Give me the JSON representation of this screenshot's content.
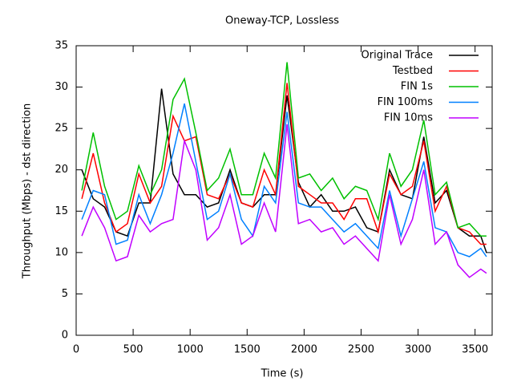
{
  "chart_data": {
    "type": "line",
    "title": "Oneway-TCP, Lossless",
    "x_label": "Time (s)",
    "y_label": "Throughput (Mbps) - dst direction",
    "x": [
      50,
      150,
      250,
      350,
      450,
      550,
      650,
      750,
      850,
      950,
      1050,
      1150,
      1250,
      1350,
      1450,
      1550,
      1650,
      1750,
      1850,
      1950,
      2050,
      2150,
      2250,
      2350,
      2450,
      2550,
      2650,
      2750,
      2850,
      2950,
      3050,
      3150,
      3250,
      3350,
      3450,
      3550,
      3600
    ],
    "series": [
      {
        "name": "Original Trace",
        "color": "#000000",
        "values": [
          20,
          16.5,
          15.5,
          12.5,
          12,
          16,
          16,
          29.8,
          19.5,
          17,
          17,
          15.5,
          16,
          20,
          16,
          15.5,
          17,
          17,
          29,
          18.5,
          15.5,
          17,
          15,
          15,
          15.5,
          13,
          12.5,
          20,
          17,
          16.5,
          24,
          16,
          17.5,
          13,
          12,
          12,
          10
        ]
      },
      {
        "name": "Testbed",
        "color": "#ff0000",
        "values": [
          16.5,
          22,
          16,
          12.5,
          13.5,
          19.5,
          16,
          18,
          26.5,
          23.5,
          24,
          17,
          16.5,
          19.5,
          16,
          15.5,
          20,
          17,
          30.5,
          18,
          17,
          16,
          16,
          14,
          16.5,
          16.5,
          12.5,
          19.5,
          17,
          18,
          23.5,
          15,
          18,
          13,
          12.5,
          11,
          11
        ]
      },
      {
        "name": "FIN 1s",
        "color": "#00c000",
        "values": [
          17.5,
          24.5,
          18,
          14,
          15,
          20.5,
          17,
          20,
          28.5,
          31,
          24.5,
          17.5,
          19,
          22.5,
          17,
          17,
          22,
          19,
          33,
          19,
          19.5,
          17.5,
          19,
          16.5,
          18,
          17.5,
          14,
          22,
          18,
          20,
          26,
          17,
          18.5,
          13,
          13.5,
          12,
          12
        ]
      },
      {
        "name": "FIN 100ms",
        "color": "#0080ff",
        "values": [
          14,
          17.5,
          17,
          11,
          11.5,
          17,
          13.5,
          17,
          22,
          28,
          21,
          14,
          15,
          19.5,
          14,
          12,
          18,
          16,
          27,
          16,
          15.5,
          15.5,
          14,
          12.5,
          13.5,
          12,
          10.5,
          17.5,
          12,
          16.5,
          21,
          13,
          12.5,
          10,
          9.5,
          10.5,
          9.5
        ]
      },
      {
        "name": "FIN 10ms",
        "color": "#c000ff",
        "values": [
          12,
          15.5,
          13,
          9,
          9.5,
          14.5,
          12.5,
          13.5,
          14,
          23.5,
          20,
          11.5,
          13,
          17,
          11,
          12,
          16,
          12.5,
          25.5,
          13.5,
          14,
          12.5,
          13,
          11,
          12,
          10.5,
          9,
          17,
          11,
          14,
          20,
          11,
          12.5,
          8.5,
          7,
          8,
          7.5
        ]
      }
    ],
    "xlim": [
      0,
      3650
    ],
    "ylim": [
      0,
      35
    ],
    "xticks": [
      0,
      500,
      1000,
      1500,
      2000,
      2500,
      3000,
      3500
    ],
    "yticks": [
      0,
      5,
      10,
      15,
      20,
      25,
      30,
      35
    ],
    "legend": "top-right"
  }
}
